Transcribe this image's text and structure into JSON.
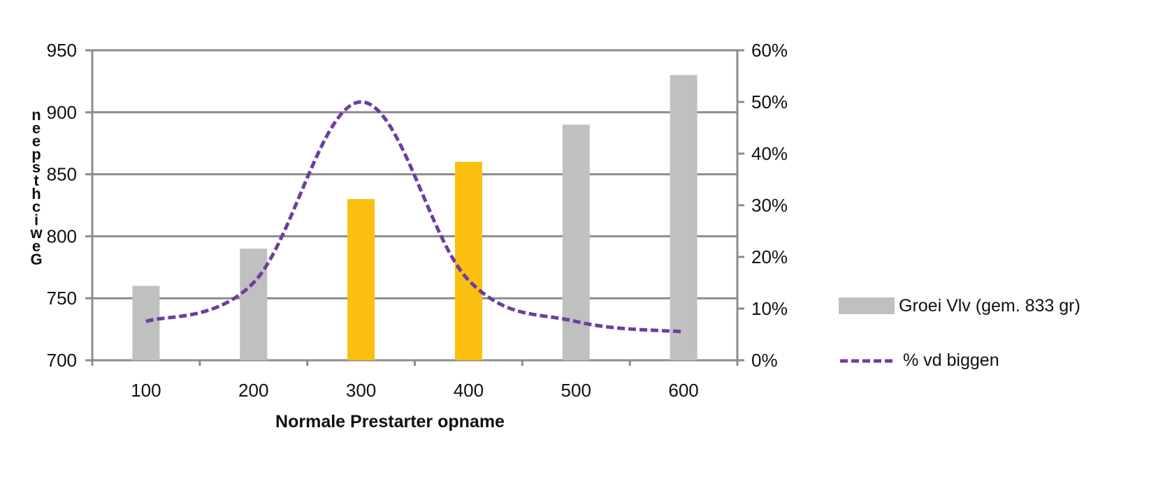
{
  "chart_data": {
    "type": "bar",
    "categories": [
      "100",
      "200",
      "300",
      "400",
      "500",
      "600"
    ],
    "xlabel": "Normale Prestarter opname",
    "ylabel": "Gewicht speen",
    "ylim": [
      700,
      950
    ],
    "yticks": [
      700,
      750,
      800,
      850,
      900,
      950
    ],
    "y2lim": [
      0,
      60
    ],
    "y2ticks": [
      "0%",
      "10%",
      "20%",
      "30%",
      "40%",
      "50%",
      "60%"
    ],
    "grid": true,
    "legend_position": "right",
    "series": [
      {
        "name": "Groei Vlv (gem. 833 gr)",
        "type": "bar",
        "axis": "left",
        "values": [
          760,
          790,
          830,
          860,
          890,
          930
        ],
        "colors": [
          "#c0c0c0",
          "#c0c0c0",
          "#fbbf0f",
          "#fbbf0f",
          "#c0c0c0",
          "#c0c0c0"
        ]
      },
      {
        "name": "% vd biggen",
        "type": "line",
        "style": "dashed",
        "axis": "right",
        "values": [
          7.5,
          15,
          50,
          15.5,
          7.5,
          5.5
        ],
        "color": "#6b3fa0"
      }
    ],
    "colors": {
      "gridline": "#8c8c8c",
      "bar_default": "#c0c0c0",
      "bar_highlight": "#fbbf0f",
      "line": "#6b3fa0"
    }
  }
}
